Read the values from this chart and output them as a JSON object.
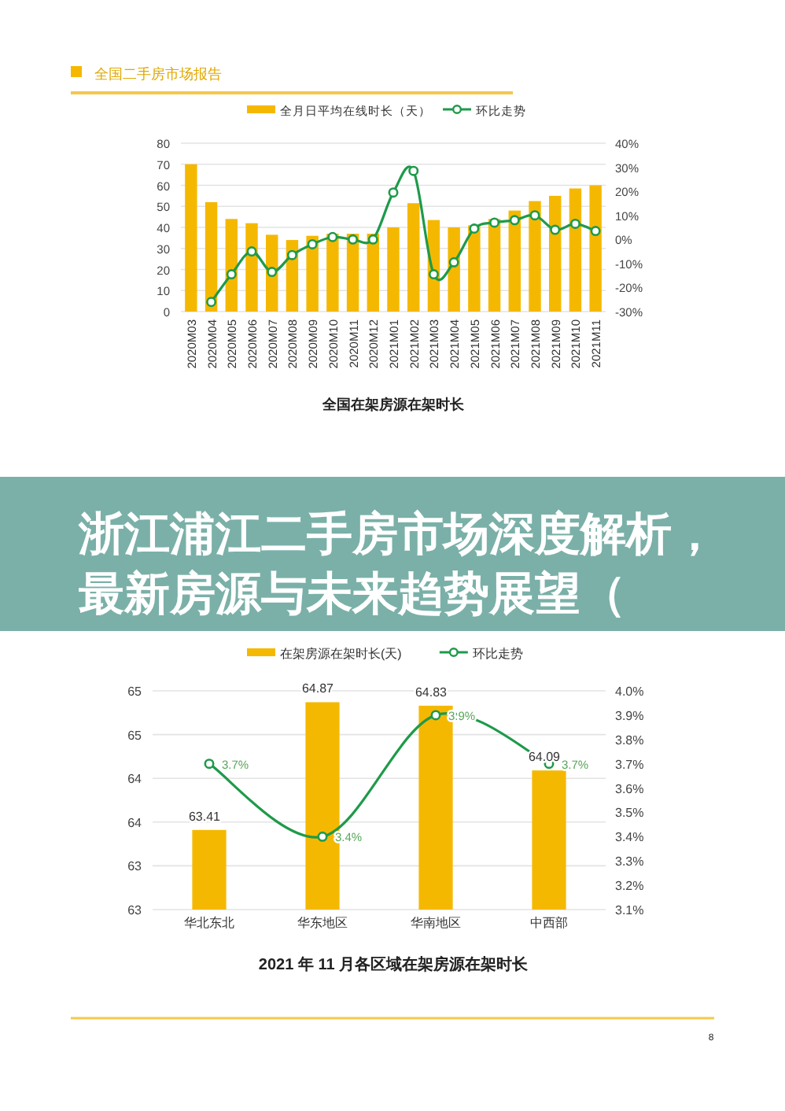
{
  "chart_data": [
    {
      "type": "bar",
      "title": "全国二手房市场报告",
      "categories": [
        "2020M03",
        "2020M04",
        "2020M05",
        "2020M06",
        "2020M07",
        "2020M08",
        "2020M09",
        "2020M10",
        "2020M11",
        "2020M12",
        "2021M01",
        "2021M02",
        "2021M03",
        "2021M04",
        "2021M05",
        "2021M06",
        "2021M07",
        "2021M08",
        "2021M09",
        "2021M10",
        "2021M11"
      ],
      "series": [
        {
          "name": "全月日平均在线时长（天）",
          "color": "#f5b800",
          "values": [
            70,
            52,
            44,
            42,
            36.5,
            34,
            36,
            37,
            37,
            37,
            40,
            51.5,
            43.5,
            40,
            41,
            44,
            48,
            52.5,
            55,
            58.5,
            60
          ]
        },
        {
          "name": "环比走势",
          "type": "line",
          "axis": "y2",
          "color": "#1e9a4a",
          "values": [
            null,
            -26,
            -14.5,
            -5,
            -13.5,
            -6.5,
            -2,
            1,
            0,
            0,
            19.5,
            28.5,
            -14.5,
            -9.5,
            4.5,
            7,
            8,
            10,
            4,
            6.5,
            3.5
          ]
        }
      ],
      "ylim": [
        0,
        80
      ],
      "yticks": [
        0,
        10,
        20,
        30,
        40,
        50,
        60,
        70,
        80
      ],
      "y2lim": [
        -30,
        40
      ],
      "y2ticks": [
        {
          "value": -30,
          "label": "-30%"
        },
        {
          "value": -20,
          "label": "-20%"
        },
        {
          "value": -10,
          "label": "-10%"
        },
        {
          "value": 0,
          "label": "0%"
        },
        {
          "value": 10,
          "label": "10%"
        },
        {
          "value": 20,
          "label": "20%"
        },
        {
          "value": 30,
          "label": "30%"
        },
        {
          "value": 40,
          "label": "40%"
        }
      ],
      "grid": "y",
      "legend": "top",
      "marker": "circle",
      "annotations": [
        "全国在架房源在架时长"
      ]
    },
    {
      "type": "other",
      "title": "浙江浦江二手房市场深度解析，最新房源与未来趋势展望（"
    },
    {
      "type": "bar",
      "categories": [
        "华北东北",
        "华东地区",
        "华南地区",
        "中西部"
      ],
      "series": [
        {
          "name": "在架房源在架时长(天)",
          "color": "#f5b800",
          "values": [
            63.41,
            64.87,
            64.83,
            64.09
          ],
          "value_labels": [
            "63.41",
            "64.87",
            "64.83",
            "64.09"
          ]
        },
        {
          "name": "环比走势",
          "type": "line",
          "axis": "y2",
          "color": "#1e9a4a",
          "values": [
            3.7,
            3.4,
            3.9,
            3.7
          ],
          "value_labels": [
            "3.7%",
            "3.4%",
            "3.9%",
            "3.7%"
          ]
        }
      ],
      "ylim": [
        62.5,
        65
      ],
      "yticks": [
        {
          "value": 62.5,
          "label": "63"
        },
        {
          "value": 63,
          "label": "63"
        },
        {
          "value": 63.5,
          "label": "64"
        },
        {
          "value": 64,
          "label": "64"
        },
        {
          "value": 64.5,
          "label": "65"
        },
        {
          "value": 65,
          "label": "65"
        }
      ],
      "y2lim": [
        3.1,
        4.0
      ],
      "y2ticks": [
        {
          "value": 3.1,
          "label": "3.1%"
        },
        {
          "value": 3.2,
          "label": "3.2%"
        },
        {
          "value": 3.3,
          "label": "3.3%"
        },
        {
          "value": 3.4,
          "label": "3.4%"
        },
        {
          "value": 3.5,
          "label": "3.5%"
        },
        {
          "value": 3.6,
          "label": "3.6%"
        },
        {
          "value": 3.7,
          "label": "3.7%"
        },
        {
          "value": 3.8,
          "label": "3.8%"
        },
        {
          "value": 3.9,
          "label": "3.9%"
        },
        {
          "value": 4.0,
          "label": "4.0%"
        }
      ],
      "grid": "y",
      "legend": "top",
      "marker": "circle",
      "annotations": [
        "2021 年 11 月各区域在架房源在架时长",
        "8"
      ]
    }
  ]
}
